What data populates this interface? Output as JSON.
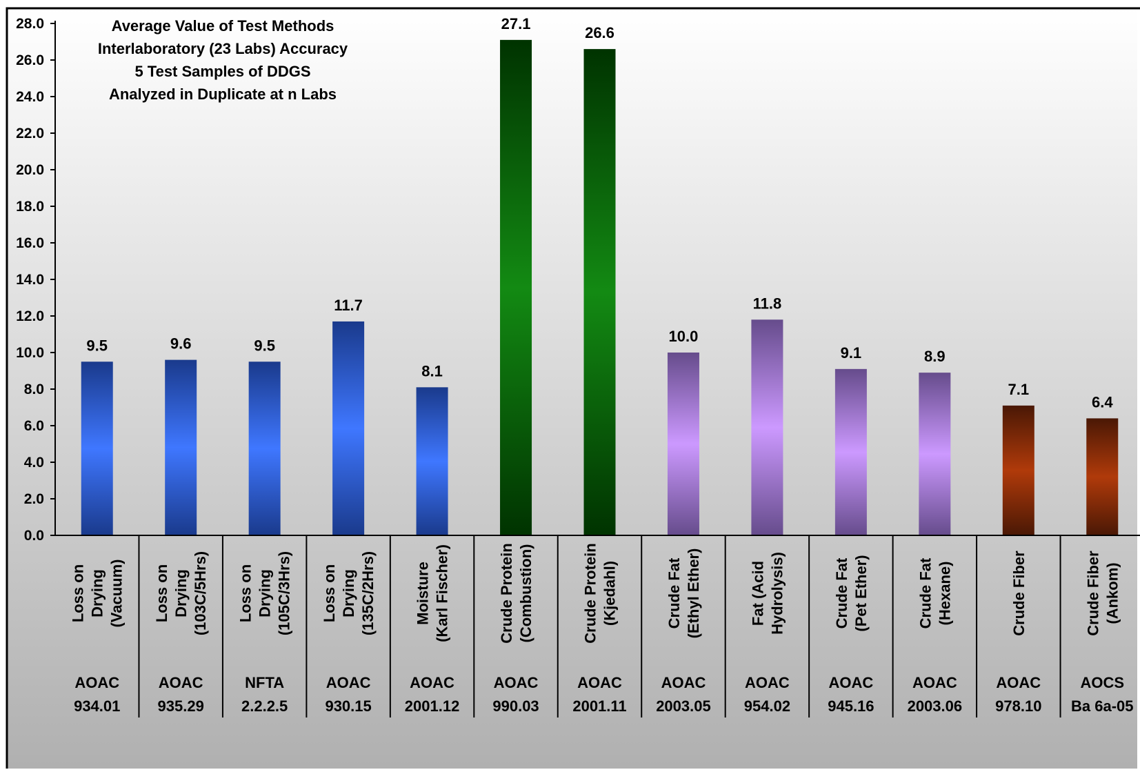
{
  "chart_data": {
    "type": "bar",
    "title_lines": [
      "Average Value of Test Methods",
      "Interlaboratory (23 Labs) Accuracy",
      "5 Test Samples of DDGS",
      "Analyzed in Duplicate at n Labs"
    ],
    "xlabel": "",
    "ylabel": "",
    "ylim": [
      0,
      28
    ],
    "yticks": [
      "0.0",
      "2.0",
      "4.0",
      "6.0",
      "8.0",
      "10.0",
      "12.0",
      "14.0",
      "16.0",
      "18.0",
      "20.0",
      "22.0",
      "24.0",
      "26.0",
      "28.0"
    ],
    "grid": false,
    "legend": "none",
    "categories": [
      {
        "name_lines": [
          "Loss on",
          "Drying",
          "(Vacuum)"
        ],
        "method_lines": [
          "AOAC",
          "934.01"
        ],
        "value": 9.5,
        "label": "9.5",
        "group": "moisture"
      },
      {
        "name_lines": [
          "Loss on",
          "Drying",
          "(103C/5Hrs)"
        ],
        "method_lines": [
          "AOAC",
          "935.29"
        ],
        "value": 9.6,
        "label": "9.6",
        "group": "moisture"
      },
      {
        "name_lines": [
          "Loss on",
          "Drying",
          "(105C/3Hrs)"
        ],
        "method_lines": [
          "NFTA",
          "2.2.2.5"
        ],
        "value": 9.5,
        "label": "9.5",
        "group": "moisture"
      },
      {
        "name_lines": [
          "Loss on",
          "Drying",
          "(135C/2Hrs)"
        ],
        "method_lines": [
          "AOAC",
          "930.15"
        ],
        "value": 11.7,
        "label": "11.7",
        "group": "moisture"
      },
      {
        "name_lines": [
          "Moisture",
          "(Karl Fischer)"
        ],
        "method_lines": [
          "AOAC",
          "2001.12"
        ],
        "value": 8.1,
        "label": "8.1",
        "group": "moisture"
      },
      {
        "name_lines": [
          "Crude Protein",
          "(Combustion)"
        ],
        "method_lines": [
          "AOAC",
          "990.03"
        ],
        "value": 27.1,
        "label": "27.1",
        "group": "protein"
      },
      {
        "name_lines": [
          "Crude Protein",
          "(Kjedahl)"
        ],
        "method_lines": [
          "AOAC",
          "2001.11"
        ],
        "value": 26.6,
        "label": "26.6",
        "group": "protein"
      },
      {
        "name_lines": [
          "Crude Fat",
          "(Ethyl Ether)"
        ],
        "method_lines": [
          "AOAC",
          "2003.05"
        ],
        "value": 10.0,
        "label": "10.0",
        "group": "fat"
      },
      {
        "name_lines": [
          "Fat (Acid",
          "Hydrolysis)"
        ],
        "method_lines": [
          "AOAC",
          "954.02"
        ],
        "value": 11.8,
        "label": "11.8",
        "group": "fat"
      },
      {
        "name_lines": [
          "Crude Fat",
          "(Pet Ether)"
        ],
        "method_lines": [
          "AOAC",
          "945.16"
        ],
        "value": 9.1,
        "label": "9.1",
        "group": "fat"
      },
      {
        "name_lines": [
          "Crude Fat",
          "(Hexane)"
        ],
        "method_lines": [
          "AOAC",
          "2003.06"
        ],
        "value": 8.9,
        "label": "8.9",
        "group": "fat"
      },
      {
        "name_lines": [
          "Crude Fiber"
        ],
        "method_lines": [
          "AOAC",
          "978.10"
        ],
        "value": 7.1,
        "label": "7.1",
        "group": "fiber"
      },
      {
        "name_lines": [
          "Crude Fiber",
          "(Ankom)"
        ],
        "method_lines": [
          "AOCS",
          "Ba 6a-05"
        ],
        "value": 6.4,
        "label": "6.4",
        "group": "fiber"
      }
    ],
    "colors": {
      "moisture": {
        "edge": "#1a3a8c",
        "center": "#3f77ff"
      },
      "protein": {
        "edge": "#003300",
        "center": "#138a13"
      },
      "fat": {
        "edge": "#664c8c",
        "center": "#cc99ff"
      },
      "fiber": {
        "edge": "#4a1805",
        "center": "#b03a0a"
      },
      "background_top": "#ffffff",
      "background_bottom": "#b0b0b0"
    }
  }
}
